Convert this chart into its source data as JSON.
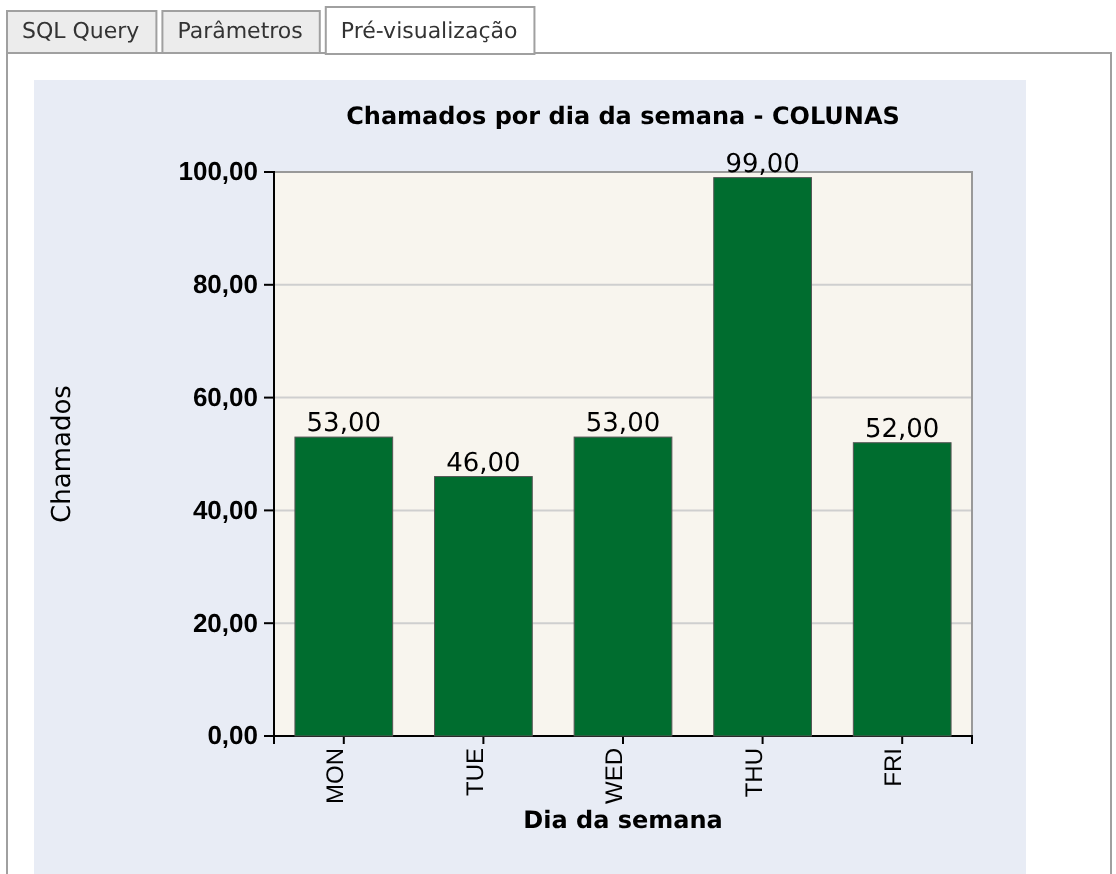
{
  "chart_data": {
    "type": "bar",
    "title": "Chamados por dia da semana - COLUNAS",
    "xlabel": "Dia da semana",
    "ylabel": "Chamados",
    "categories": [
      "MON",
      "TUE",
      "WED",
      "THU",
      "FRI"
    ],
    "values": [
      53,
      46,
      53,
      99,
      52
    ],
    "value_labels": [
      "53,00",
      "46,00",
      "53,00",
      "99,00",
      "52,00"
    ],
    "color": "#006d2f",
    "ylim": [
      0,
      100
    ],
    "yticks": [
      {
        "value": 0,
        "label": "0,00"
      },
      {
        "value": 20,
        "label": "20,00"
      },
      {
        "value": 40,
        "label": "40,00"
      },
      {
        "value": 60,
        "label": "60,00"
      },
      {
        "value": 80,
        "label": "80,00"
      },
      {
        "value": 100,
        "label": "100,00"
      }
    ],
    "grid": "y",
    "annotations": [
      "SQL Query",
      "Parâmetros",
      "Pré-visualização"
    ]
  }
}
